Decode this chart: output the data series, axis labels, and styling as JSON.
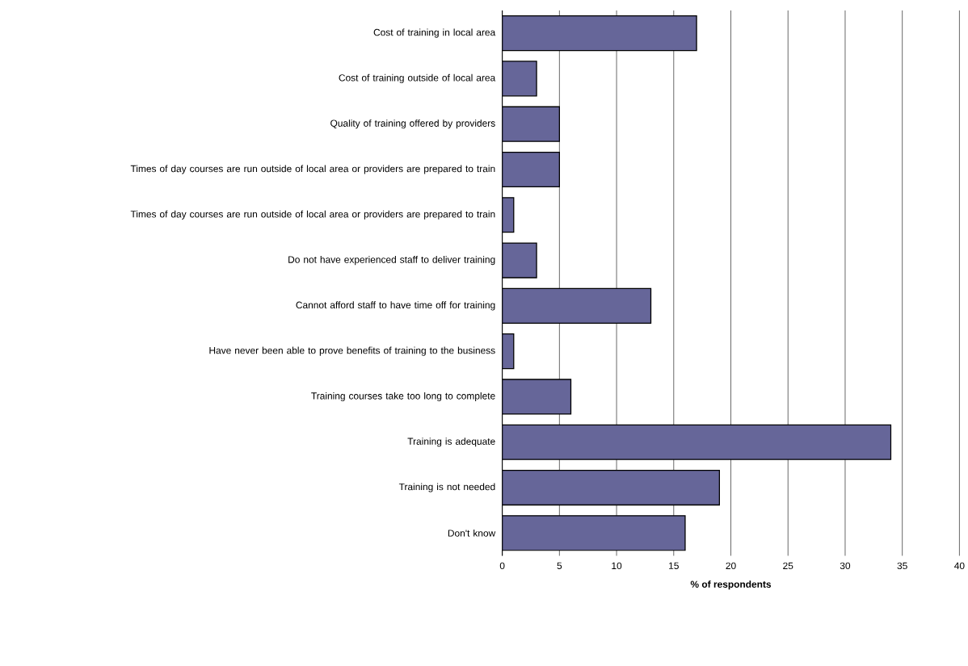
{
  "chart_data": {
    "type": "bar",
    "orientation": "horizontal",
    "xlabel": "% of respondents",
    "categories": [
      "Cost of training in local area",
      "Cost of training outside of local area",
      "Quality of training offered by providers",
      "Times of day courses are run outside of local area or providers are prepared to train",
      "Times of day courses are run outside of local area or providers are prepared to train",
      "Do not have experienced staff to deliver training",
      "Cannot afford staff to have time off for training",
      "Have never been able to prove benefits of training to the business",
      "Training courses take too long to complete",
      "Training is adequate",
      "Training is not needed",
      "Don't know"
    ],
    "values": [
      17,
      3,
      5,
      5,
      1,
      3,
      13,
      1,
      6,
      34,
      19,
      16
    ],
    "color": "#666699",
    "xlim": [
      0,
      40
    ],
    "xticks": [
      0,
      5,
      10,
      15,
      20,
      25,
      30,
      35,
      40
    ],
    "grid": "x"
  }
}
